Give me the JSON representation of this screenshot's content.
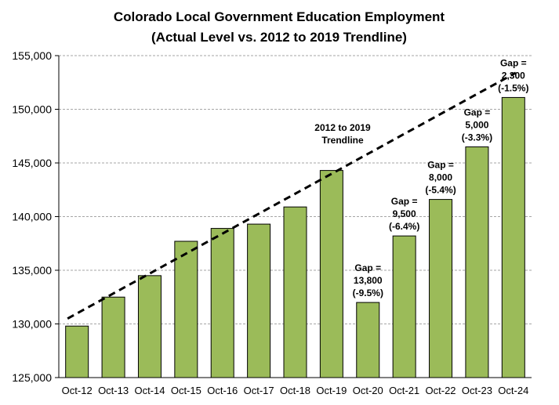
{
  "chart_data": {
    "type": "bar",
    "title": "Colorado Local Government Education Employment",
    "subtitle": "(Actual Level vs. 2012 to 2019 Trendline)",
    "categories": [
      "Oct-12",
      "Oct-13",
      "Oct-14",
      "Oct-15",
      "Oct-16",
      "Oct-17",
      "Oct-18",
      "Oct-19",
      "Oct-20",
      "Oct-21",
      "Oct-22",
      "Oct-23",
      "Oct-24"
    ],
    "values": [
      129800,
      132500,
      134500,
      137700,
      138900,
      139300,
      140900,
      144300,
      132000,
      138200,
      141600,
      146500,
      151100
    ],
    "trendline": {
      "label": [
        "2012 to 2019",
        "Trendline"
      ],
      "start": 130500,
      "end": 153400
    },
    "annotations": [
      {
        "category": "Oct-20",
        "lines": [
          "Gap =",
          "13,800",
          "(-9.5%)"
        ]
      },
      {
        "category": "Oct-21",
        "lines": [
          "Gap =",
          "9,500",
          "(-6.4%)"
        ]
      },
      {
        "category": "Oct-22",
        "lines": [
          "Gap =",
          "8,000",
          "(-5.4%)"
        ]
      },
      {
        "category": "Oct-23",
        "lines": [
          "Gap =",
          "5,000",
          "(-3.3%)"
        ]
      },
      {
        "category": "Oct-24",
        "lines": [
          "Gap =",
          "2,300",
          "(-1.5%)"
        ]
      }
    ],
    "ylim": [
      125000,
      155000
    ],
    "yticks": [
      125000,
      130000,
      135000,
      140000,
      145000,
      150000,
      155000
    ],
    "ytick_labels": [
      "125,000",
      "130,000",
      "135,000",
      "140,000",
      "145,000",
      "150,000",
      "155,000"
    ],
    "grid": true,
    "colors": {
      "bar": "#9bbb59",
      "bar_edge": "#000000",
      "grid": "#a6a6a6",
      "trend": "#000000"
    }
  }
}
